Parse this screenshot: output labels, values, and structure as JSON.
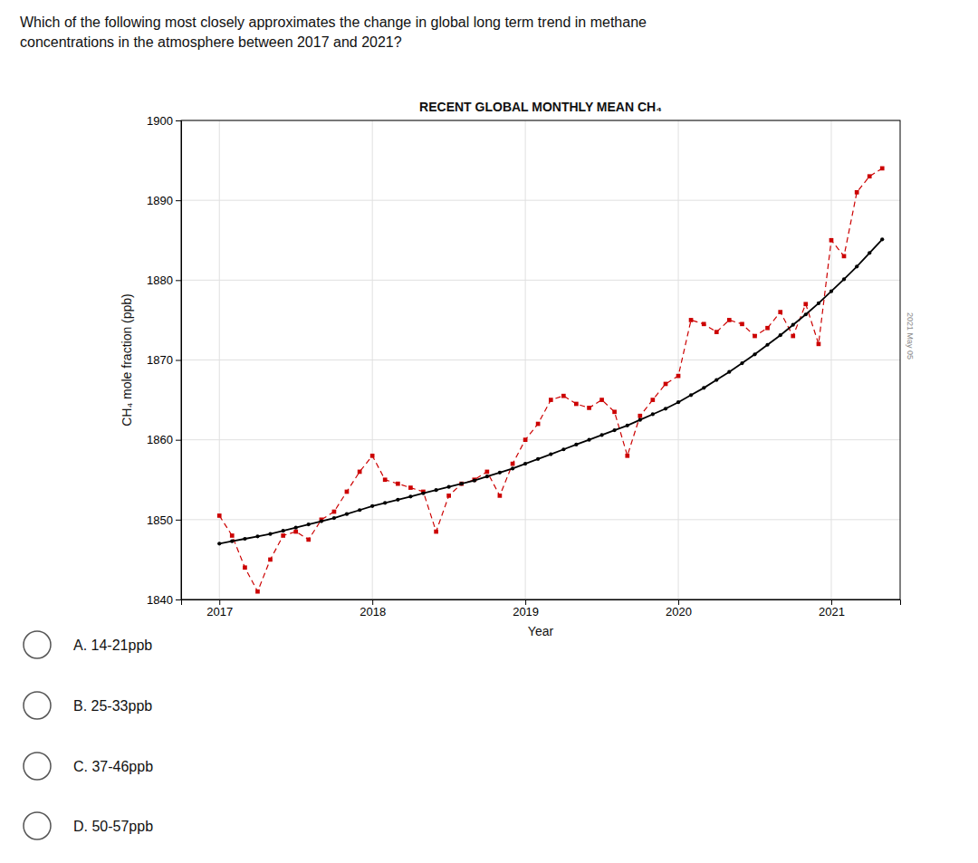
{
  "question_text": "Which of the following most closely approximates the change in global long term trend in methane\nconcentrations in the atmosphere between 2017 and 2021?",
  "options": [
    "A. 14-21ppb",
    "B. 25-33ppb",
    "C. 37-46ppb",
    "D. 50-57ppb"
  ],
  "chart_data": {
    "type": "line",
    "title": "RECENT GLOBAL MONTHLY MEAN CH₄",
    "x_label": "Year",
    "y_label": "CH₄ mole fraction (ppb)",
    "annotations": [
      "2021 May 05"
    ],
    "xlim": [
      2016.75,
      2021.45
    ],
    "ylim": [
      1840,
      1900
    ],
    "xticks": [
      2017,
      2018,
      2019,
      2020,
      2021
    ],
    "yticks": [
      1840,
      1850,
      1860,
      1870,
      1880,
      1890,
      1900
    ],
    "grid": true,
    "x": [
      2017.0,
      2017.083,
      2017.167,
      2017.25,
      2017.333,
      2017.417,
      2017.5,
      2017.583,
      2017.667,
      2017.75,
      2017.833,
      2017.917,
      2018.0,
      2018.083,
      2018.167,
      2018.25,
      2018.333,
      2018.417,
      2018.5,
      2018.583,
      2018.667,
      2018.75,
      2018.833,
      2018.917,
      2019.0,
      2019.083,
      2019.167,
      2019.25,
      2019.333,
      2019.417,
      2019.5,
      2019.583,
      2019.667,
      2019.75,
      2019.833,
      2019.917,
      2020.0,
      2020.083,
      2020.167,
      2020.25,
      2020.333,
      2020.417,
      2020.5,
      2020.583,
      2020.667,
      2020.75,
      2020.833,
      2020.917,
      2021.0,
      2021.083,
      2021.167,
      2021.25,
      2021.333
    ],
    "series": [
      {
        "color": "#cc0000",
        "line_style": "dashed",
        "marker": "square",
        "values": [
          1850.5,
          1848.0,
          1844.0,
          1841.0,
          1845.0,
          1848.0,
          1848.5,
          1847.5,
          1850.0,
          1851.0,
          1853.5,
          1856.0,
          1858.0,
          1855.0,
          1854.5,
          1854.0,
          1853.5,
          1848.5,
          1853.0,
          1854.5,
          1855.0,
          1856.0,
          1853.0,
          1857.0,
          1860.0,
          1862.0,
          1865.0,
          1865.5,
          1864.5,
          1864.0,
          1865.0,
          1863.5,
          1858.0,
          1863.0,
          1865.0,
          1867.0,
          1868.0,
          1875.0,
          1874.5,
          1873.5,
          1875.0,
          1874.5,
          1873.0,
          1874.0,
          1876.0,
          1873.0,
          1877.0,
          1872.0,
          1885.0,
          1883.0,
          1891.0,
          1893.0,
          1894.0
        ]
      },
      {
        "color": "#000000",
        "line_style": "solid",
        "marker": "circle",
        "values": [
          1847.0,
          1847.3,
          1847.6,
          1847.9,
          1848.2,
          1848.6,
          1849.0,
          1849.4,
          1849.8,
          1850.2,
          1850.7,
          1851.2,
          1851.7,
          1852.1,
          1852.5,
          1852.9,
          1853.3,
          1853.7,
          1854.1,
          1854.5,
          1854.9,
          1855.4,
          1855.9,
          1856.4,
          1857.0,
          1857.6,
          1858.2,
          1858.8,
          1859.4,
          1860.0,
          1860.6,
          1861.2,
          1861.8,
          1862.5,
          1863.2,
          1863.9,
          1864.7,
          1865.6,
          1866.5,
          1867.5,
          1868.5,
          1869.6,
          1870.7,
          1871.9,
          1873.1,
          1874.4,
          1875.7,
          1877.1,
          1878.6,
          1880.1,
          1881.7,
          1883.4,
          1885.1
        ]
      }
    ]
  }
}
